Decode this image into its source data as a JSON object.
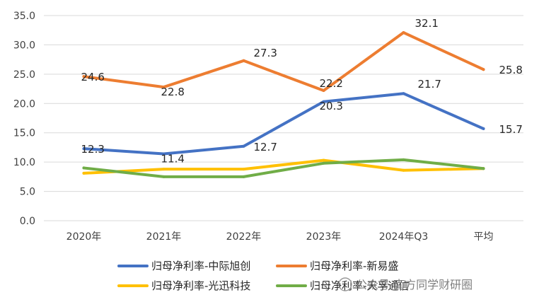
{
  "chart_data": {
    "type": "line",
    "categories": [
      "2020年",
      "2021年",
      "2022年",
      "2023年",
      "2024年Q3",
      "平均"
    ],
    "ylim": [
      0,
      35
    ],
    "yticks": [
      "0.0",
      "5.0",
      "10.0",
      "15.0",
      "20.0",
      "25.0",
      "30.0",
      "35.0"
    ],
    "grid": true,
    "legend_position": "bottom",
    "series": [
      {
        "name": "归母净利率-中际旭创",
        "color": "#4472c4",
        "values": [
          12.3,
          11.4,
          12.7,
          20.3,
          21.7,
          15.7
        ],
        "labels": [
          "12.3",
          "11.4",
          "12.7",
          "20.3",
          "21.7",
          "15.7"
        ]
      },
      {
        "name": "归母净利率-新易盛",
        "color": "#ed7d31",
        "values": [
          24.6,
          22.8,
          27.3,
          22.2,
          32.1,
          25.8
        ],
        "labels": [
          "24.6",
          "22.8",
          "27.3",
          "22.2",
          "32.1",
          "25.8"
        ]
      },
      {
        "name": "归母净利率-光迅科技",
        "color": "#ffc000",
        "values": [
          8.1,
          8.8,
          8.8,
          10.3,
          8.6,
          8.9
        ],
        "labels": []
      },
      {
        "name": "归母净利率-天孚通信",
        "color": "#70ad47",
        "values": [
          9.0,
          7.5,
          7.5,
          9.8,
          10.4,
          8.9
        ],
        "labels": []
      }
    ]
  },
  "watermark": {
    "text": "公众号·南方同学财研圈"
  }
}
